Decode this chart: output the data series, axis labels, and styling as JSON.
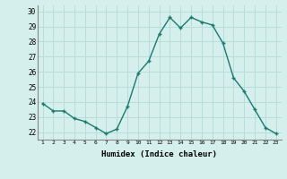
{
  "x": [
    1,
    2,
    3,
    4,
    5,
    6,
    7,
    8,
    9,
    10,
    11,
    12,
    13,
    14,
    15,
    16,
    17,
    18,
    19,
    20,
    21,
    22,
    23
  ],
  "y": [
    23.9,
    23.4,
    23.4,
    22.9,
    22.7,
    22.3,
    21.9,
    22.2,
    23.7,
    25.9,
    26.7,
    28.5,
    29.6,
    28.9,
    29.6,
    29.3,
    29.1,
    27.9,
    25.6,
    24.7,
    23.5,
    22.3,
    21.9
  ],
  "line_color": "#1a7a6e",
  "marker": "+",
  "marker_size": 3,
  "xlabel": "Humidex (Indice chaleur)",
  "xlim": [
    0.5,
    23.5
  ],
  "ylim": [
    21.5,
    30.4
  ],
  "yticks": [
    22,
    23,
    24,
    25,
    26,
    27,
    28,
    29,
    30
  ],
  "xtick_labels": [
    "1",
    "2",
    "3",
    "4",
    "5",
    "6",
    "7",
    "8",
    "9",
    "10",
    "11",
    "12",
    "13",
    "14",
    "15",
    "16",
    "17",
    "18",
    "19",
    "20",
    "21",
    "22",
    "23"
  ],
  "background_color": "#d5efec",
  "grid_color": "#b8ddd9",
  "font_family": "monospace"
}
